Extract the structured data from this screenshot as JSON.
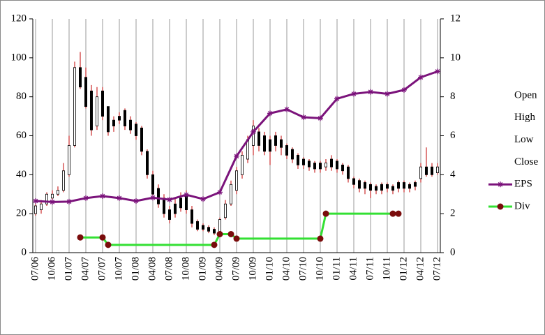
{
  "chart_data": {
    "type": "stock",
    "categories": [
      "07/06",
      null,
      null,
      "10/06",
      null,
      null,
      "01/07",
      null,
      null,
      "04/07",
      null,
      null,
      "07/07",
      null,
      null,
      "10/07",
      null,
      null,
      "01/08",
      null,
      null,
      "04/08",
      null,
      null,
      "07/08",
      null,
      null,
      "10/08",
      null,
      null,
      "01/09",
      null,
      null,
      "04/09",
      null,
      null,
      "07/09",
      null,
      null,
      "10/09",
      null,
      null,
      "01/10",
      null,
      null,
      "04/10",
      null,
      null,
      "07/10",
      null,
      null,
      "10/10",
      null,
      null,
      "01/11",
      null,
      null,
      "04/11",
      null,
      null,
      "07/11",
      null,
      null,
      "10/11",
      null,
      null,
      "01/12",
      null,
      null,
      "04/12",
      null,
      null,
      "07/12"
    ],
    "series": [
      {
        "name": "Open",
        "values": [
          20,
          22,
          25,
          28,
          30,
          32,
          40,
          55,
          95,
          90,
          83,
          65,
          83,
          75,
          68,
          70,
          73,
          68,
          66,
          64,
          52,
          40,
          33,
          28,
          22,
          25,
          28,
          30,
          22,
          16,
          14,
          13,
          12,
          10,
          18,
          25,
          32,
          40,
          48,
          55,
          62,
          60,
          58,
          60,
          58,
          55,
          53,
          50,
          48,
          47,
          46,
          46,
          44,
          48,
          47,
          45,
          44,
          38,
          37,
          36,
          35,
          34,
          35,
          35,
          34,
          36,
          36,
          35,
          36,
          38,
          44,
          44,
          41
        ]
      },
      {
        "name": "High",
        "values": [
          25,
          27,
          31,
          32,
          34,
          46,
          60,
          98,
          103,
          95,
          86,
          85,
          85,
          75,
          70,
          72,
          74,
          70,
          67,
          65,
          53,
          42,
          35,
          30,
          24,
          28,
          31,
          32,
          24,
          17,
          15,
          14,
          13,
          18,
          27,
          37,
          44,
          52,
          60,
          68,
          64,
          62,
          60,
          62,
          60,
          56,
          54,
          51,
          49,
          48,
          47,
          47,
          48,
          50,
          48,
          46,
          45,
          39,
          38,
          37,
          36,
          35,
          36,
          36,
          35,
          37,
          37,
          36,
          37,
          46,
          54,
          46,
          46
        ]
      },
      {
        "name": "Low",
        "values": [
          19,
          20,
          24,
          27,
          29,
          31,
          39,
          54,
          84,
          74,
          60,
          63,
          68,
          60,
          62,
          66,
          63,
          61,
          58,
          50,
          38,
          29,
          23,
          18,
          15,
          18,
          21,
          20,
          13,
          11,
          11,
          10,
          9,
          9,
          17,
          24,
          30,
          38,
          46,
          50,
          52,
          50,
          45,
          52,
          50,
          48,
          46,
          43,
          43,
          42,
          41,
          41,
          42,
          42,
          41,
          40,
          36,
          33,
          31,
          30,
          28,
          30,
          30,
          31,
          30,
          31,
          31,
          31,
          32,
          36,
          39,
          39,
          40
        ]
      },
      {
        "name": "Close",
        "values": [
          24,
          25,
          30,
          30,
          32,
          42,
          55,
          95,
          85,
          75,
          63,
          80,
          70,
          62,
          65,
          68,
          65,
          63,
          60,
          52,
          40,
          30,
          25,
          20,
          17,
          20,
          23,
          22,
          15,
          12,
          12,
          11,
          10,
          17,
          25,
          35,
          42,
          50,
          58,
          65,
          55,
          52,
          52,
          55,
          54,
          50,
          48,
          45,
          45,
          44,
          43,
          43,
          46,
          44,
          43,
          42,
          38,
          35,
          33,
          33,
          32,
          32,
          32,
          33,
          32,
          33,
          33,
          33,
          34,
          44,
          40,
          40,
          44
        ]
      },
      {
        "name": "EPS",
        "type": "line",
        "axis": "y2",
        "color": "#7b137b",
        "marker": "star",
        "connect_gaps": true,
        "values": [
          2.65,
          null,
          null,
          2.6,
          null,
          null,
          2.62,
          null,
          null,
          2.8,
          null,
          null,
          2.9,
          null,
          null,
          2.8,
          null,
          null,
          2.65,
          null,
          null,
          2.82,
          null,
          null,
          2.72,
          null,
          null,
          2.97,
          null,
          null,
          2.75,
          null,
          null,
          3.1,
          null,
          null,
          4.95,
          null,
          null,
          6.2,
          null,
          null,
          7.15,
          null,
          null,
          7.35,
          null,
          null,
          6.95,
          null,
          null,
          6.9,
          null,
          null,
          7.9,
          null,
          null,
          8.15,
          null,
          null,
          8.25,
          null,
          null,
          8.15,
          null,
          null,
          8.35,
          null,
          null,
          9,
          null,
          null,
          9.3
        ]
      },
      {
        "name": "Div",
        "type": "line",
        "axis": "y2",
        "color": "#33e033",
        "marker_color": "#7a0c0c",
        "marker": "circle",
        "connect_gaps": true,
        "values": [
          null,
          null,
          null,
          null,
          null,
          null,
          null,
          null,
          0.78,
          null,
          null,
          null,
          0.78,
          0.4,
          null,
          null,
          null,
          null,
          null,
          null,
          null,
          null,
          null,
          null,
          null,
          null,
          null,
          null,
          null,
          null,
          null,
          null,
          0.4,
          0.95,
          null,
          0.95,
          0.72,
          null,
          null,
          null,
          null,
          null,
          null,
          null,
          null,
          null,
          null,
          null,
          null,
          null,
          null,
          0.72,
          2,
          null,
          null,
          null,
          null,
          null,
          null,
          null,
          null,
          null,
          null,
          null,
          2,
          2,
          null,
          null,
          null,
          null,
          null,
          null,
          null
        ]
      }
    ],
    "up_color": "#ffffff",
    "down_color": "#000000",
    "wick_color": "#c00000",
    "ylim": [
      0,
      120
    ],
    "yticks": [
      0,
      20,
      40,
      60,
      80,
      100,
      120
    ],
    "y2lim": [
      0,
      12
    ],
    "y2ticks": [
      0,
      2,
      4,
      6,
      8,
      10,
      12
    ],
    "grid": "x",
    "legend": "right"
  }
}
